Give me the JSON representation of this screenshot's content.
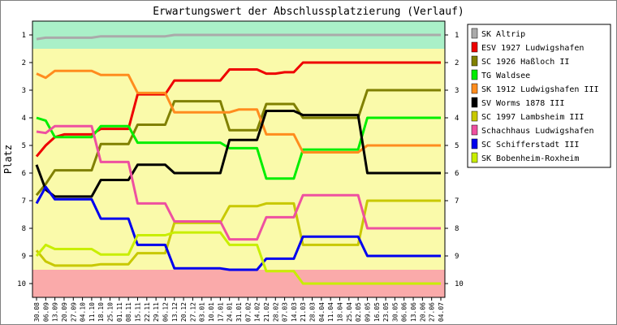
{
  "chart_data": {
    "type": "line",
    "title": "Erwartungswert der Abschlussplatzierung (Verlauf)",
    "ylabel": "Platz",
    "ylim": [
      0.5,
      10.5
    ],
    "yticks": [
      1,
      2,
      3,
      4,
      5,
      6,
      7,
      8,
      9,
      10
    ],
    "inverted_y": true,
    "grid": false,
    "legend": "right",
    "bands": [
      {
        "from": 0.5,
        "to": 1.5,
        "color": "#aaf0c8"
      },
      {
        "from": 1.5,
        "to": 9.5,
        "color": "#fafaaa"
      },
      {
        "from": 9.5,
        "to": 10.5,
        "color": "#faaaaa"
      }
    ],
    "x": [
      "30.08",
      "06.09",
      "13.09",
      "20.09",
      "27.09",
      "04.10",
      "11.10",
      "18.10",
      "25.10",
      "01.11",
      "08.11",
      "15.11",
      "22.11",
      "29.11",
      "06.12",
      "13.12",
      "20.12",
      "27.12",
      "03.01",
      "10.01",
      "17.01",
      "24.01",
      "31.01",
      "07.02",
      "14.02",
      "21.02",
      "28.02",
      "07.03",
      "14.03",
      "21.03",
      "28.03",
      "04.04",
      "11.04",
      "18.04",
      "25.04",
      "02.05",
      "09.05",
      "16.05",
      "23.05",
      "30.05",
      "06.06",
      "13.06",
      "20.06",
      "27.06",
      "04.07"
    ],
    "series": [
      {
        "name": "SK Altrip",
        "color": "#aaaaaa",
        "values": [
          1.15,
          1.1,
          1.1,
          1.1,
          1.1,
          1.1,
          1.1,
          1.05,
          1.05,
          1.05,
          1.05,
          1.05,
          1.05,
          1.05,
          1.05,
          1.0,
          1.0,
          1.0,
          1.0,
          1.0,
          1.0,
          1.0,
          1.0,
          1.0,
          1.0,
          1.0,
          1.0,
          1.0,
          1.0,
          1.0,
          1.0,
          1.0,
          1.0,
          1.0,
          1.0,
          1.0,
          1.0,
          1.0,
          1.0,
          1.0,
          1.0,
          1.0,
          1.0,
          1.0,
          1.0
        ]
      },
      {
        "name": "ESV 1927 Ludwigshafen",
        "color": "#ee0000",
        "values": [
          5.4,
          5.0,
          4.7,
          4.6,
          4.6,
          4.6,
          4.6,
          4.4,
          4.4,
          4.4,
          4.4,
          3.15,
          3.15,
          3.15,
          3.15,
          2.65,
          2.65,
          2.65,
          2.65,
          2.65,
          2.65,
          2.25,
          2.25,
          2.25,
          2.25,
          2.4,
          2.4,
          2.35,
          2.35,
          2.0,
          2.0,
          2.0,
          2.0,
          2.0,
          2.0,
          2.0,
          2.0,
          2.0,
          2.0,
          2.0,
          2.0,
          2.0,
          2.0,
          2.0,
          2.0
        ]
      },
      {
        "name": "SC 1926 Haßloch   II",
        "color": "#808000",
        "values": [
          6.8,
          6.4,
          5.9,
          5.9,
          5.9,
          5.9,
          5.9,
          4.95,
          4.95,
          4.95,
          4.95,
          4.25,
          4.25,
          4.25,
          4.25,
          3.4,
          3.4,
          3.4,
          3.4,
          3.4,
          3.4,
          4.45,
          4.45,
          4.45,
          4.45,
          3.5,
          3.5,
          3.5,
          3.5,
          4.0,
          4.0,
          4.0,
          4.0,
          4.0,
          4.0,
          4.0,
          3.0,
          3.0,
          3.0,
          3.0,
          3.0,
          3.0,
          3.0,
          3.0,
          3.0
        ]
      },
      {
        "name": "TG Waldsee",
        "color": "#00ee00",
        "values": [
          4.0,
          4.1,
          4.7,
          4.7,
          4.7,
          4.7,
          4.7,
          4.3,
          4.3,
          4.3,
          4.3,
          4.9,
          4.9,
          4.9,
          4.9,
          4.9,
          4.9,
          4.9,
          4.9,
          4.9,
          4.9,
          5.1,
          5.1,
          5.1,
          5.1,
          6.2,
          6.2,
          6.2,
          6.2,
          5.15,
          5.15,
          5.15,
          5.15,
          5.15,
          5.15,
          5.15,
          4.0,
          4.0,
          4.0,
          4.0,
          4.0,
          4.0,
          4.0,
          4.0,
          4.0
        ]
      },
      {
        "name": "SK 1912 Ludwigshafen   III",
        "color": "#ff8c1e",
        "values": [
          2.4,
          2.55,
          2.3,
          2.3,
          2.3,
          2.3,
          2.3,
          2.45,
          2.45,
          2.45,
          2.45,
          3.1,
          3.1,
          3.1,
          3.1,
          3.8,
          3.8,
          3.8,
          3.8,
          3.8,
          3.8,
          3.8,
          3.7,
          3.7,
          3.7,
          4.6,
          4.6,
          4.6,
          4.6,
          5.25,
          5.25,
          5.25,
          5.25,
          5.25,
          5.25,
          5.25,
          5.0,
          5.0,
          5.0,
          5.0,
          5.0,
          5.0,
          5.0,
          5.0,
          5.0
        ]
      },
      {
        "name": "SV Worms 1878   III",
        "color": "#000000",
        "values": [
          5.7,
          6.6,
          6.85,
          6.85,
          6.85,
          6.85,
          6.85,
          6.25,
          6.25,
          6.25,
          6.25,
          5.7,
          5.7,
          5.7,
          5.7,
          6.0,
          6.0,
          6.0,
          6.0,
          6.0,
          6.0,
          4.8,
          4.8,
          4.8,
          4.8,
          3.75,
          3.75,
          3.75,
          3.75,
          3.9,
          3.9,
          3.9,
          3.9,
          3.9,
          3.9,
          3.9,
          6.0,
          6.0,
          6.0,
          6.0,
          6.0,
          6.0,
          6.0,
          6.0,
          6.0
        ]
      },
      {
        "name": "SC 1997 Lambsheim   III",
        "color": "#c8c800",
        "values": [
          8.8,
          9.2,
          9.35,
          9.35,
          9.35,
          9.35,
          9.35,
          9.3,
          9.3,
          9.3,
          9.3,
          8.9,
          8.9,
          8.9,
          8.9,
          7.8,
          7.8,
          7.8,
          7.8,
          7.8,
          7.8,
          7.2,
          7.2,
          7.2,
          7.2,
          7.1,
          7.1,
          7.1,
          7.1,
          8.6,
          8.6,
          8.6,
          8.6,
          8.6,
          8.6,
          8.6,
          7.0,
          7.0,
          7.0,
          7.0,
          7.0,
          7.0,
          7.0,
          7.0,
          7.0
        ]
      },
      {
        "name": "Schachhaus Ludwigshafen",
        "color": "#ee50a0",
        "values": [
          4.5,
          4.55,
          4.3,
          4.3,
          4.3,
          4.3,
          4.3,
          5.6,
          5.6,
          5.6,
          5.6,
          7.1,
          7.1,
          7.1,
          7.1,
          7.75,
          7.75,
          7.75,
          7.75,
          7.75,
          7.75,
          8.4,
          8.4,
          8.4,
          8.4,
          7.6,
          7.6,
          7.6,
          7.6,
          6.8,
          6.8,
          6.8,
          6.8,
          6.8,
          6.8,
          6.8,
          8.0,
          8.0,
          8.0,
          8.0,
          8.0,
          8.0,
          8.0,
          8.0,
          8.0
        ]
      },
      {
        "name": "SC Schifferstadt   III",
        "color": "#0000ee",
        "values": [
          7.1,
          6.5,
          6.95,
          6.95,
          6.95,
          6.95,
          6.95,
          7.65,
          7.65,
          7.65,
          7.65,
          8.6,
          8.6,
          8.6,
          8.6,
          9.45,
          9.45,
          9.45,
          9.45,
          9.45,
          9.45,
          9.5,
          9.5,
          9.5,
          9.5,
          9.1,
          9.1,
          9.1,
          9.1,
          8.3,
          8.3,
          8.3,
          8.3,
          8.3,
          8.3,
          8.3,
          9.0,
          9.0,
          9.0,
          9.0,
          9.0,
          9.0,
          9.0,
          9.0,
          9.0
        ]
      },
      {
        "name": "SK Bobenheim-Roxheim",
        "color": "#c8ee00",
        "values": [
          9.0,
          8.6,
          8.75,
          8.75,
          8.75,
          8.75,
          8.75,
          8.95,
          8.95,
          8.95,
          8.95,
          8.25,
          8.25,
          8.25,
          8.25,
          8.15,
          8.15,
          8.15,
          8.15,
          8.15,
          8.15,
          8.6,
          8.6,
          8.6,
          8.6,
          9.55,
          9.55,
          9.55,
          9.55,
          10.0,
          10.0,
          10.0,
          10.0,
          10.0,
          10.0,
          10.0,
          10.0,
          10.0,
          10.0,
          10.0,
          10.0,
          10.0,
          10.0,
          10.0,
          10.0
        ]
      }
    ]
  }
}
